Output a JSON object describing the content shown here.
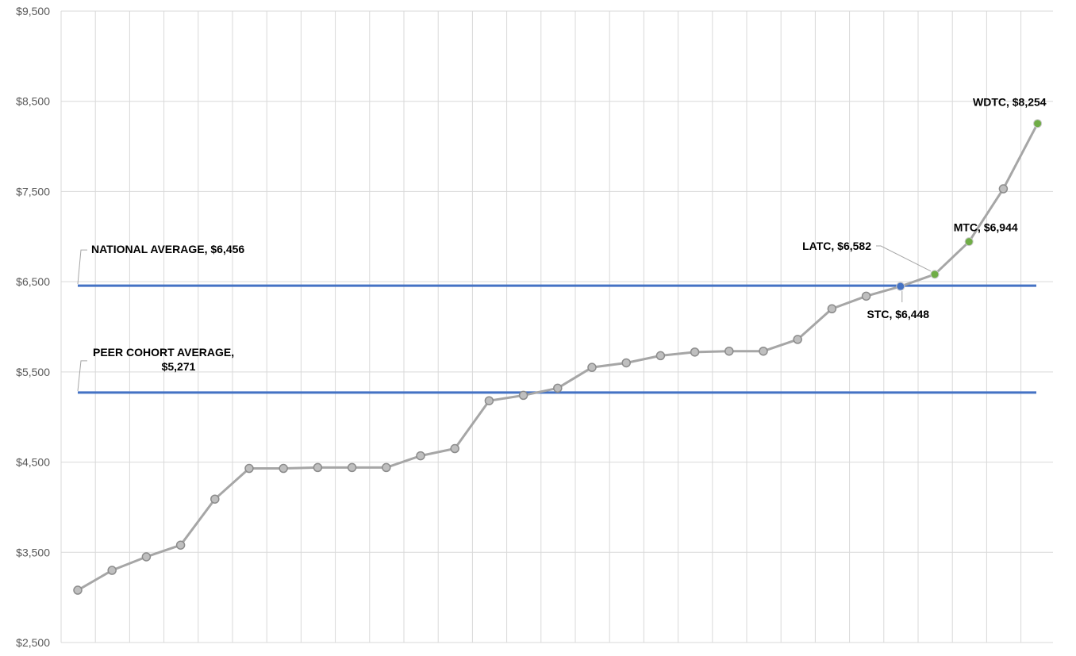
{
  "chart_data": {
    "type": "line",
    "ylim": [
      2500,
      9500
    ],
    "y_ticks": [
      "$2,500",
      "$3,500",
      "$4,500",
      "$5,500",
      "$6,500",
      "$7,500",
      "$8,500",
      "$9,500"
    ],
    "y_tick_values": [
      2500,
      3500,
      4500,
      5500,
      6500,
      7500,
      8500,
      9500
    ],
    "grid": true,
    "series": [
      {
        "values": [
          3080,
          3300,
          3450,
          3580,
          4090,
          4430,
          4430,
          4440,
          4440,
          4440,
          4570,
          4650,
          5180,
          5240,
          5320,
          5550,
          5600,
          5680,
          5720,
          5730,
          5730,
          5860,
          6200,
          6340,
          6448,
          6582,
          6944,
          7530,
          8254
        ],
        "color": "#a6a6a6"
      }
    ],
    "highlights": [
      {
        "index": 24,
        "label": "STC, $6,448",
        "color": "#4472c4"
      },
      {
        "index": 25,
        "label": "LATC, $6,582",
        "color": "#70ad47"
      },
      {
        "index": 26,
        "label": "MTC, $6,944",
        "color": "#70ad47"
      },
      {
        "index": 28,
        "label": "WDTC, $8,254",
        "color": "#70ad47"
      }
    ],
    "reference_lines": [
      {
        "value": 6456,
        "label": "NATIONAL AVERAGE, $6,456",
        "color": "#4472c4"
      },
      {
        "value": 5271,
        "label_line1": "PEER COHORT AVERAGE,",
        "label_line2": "$5,271",
        "color": "#4472c4"
      }
    ]
  }
}
